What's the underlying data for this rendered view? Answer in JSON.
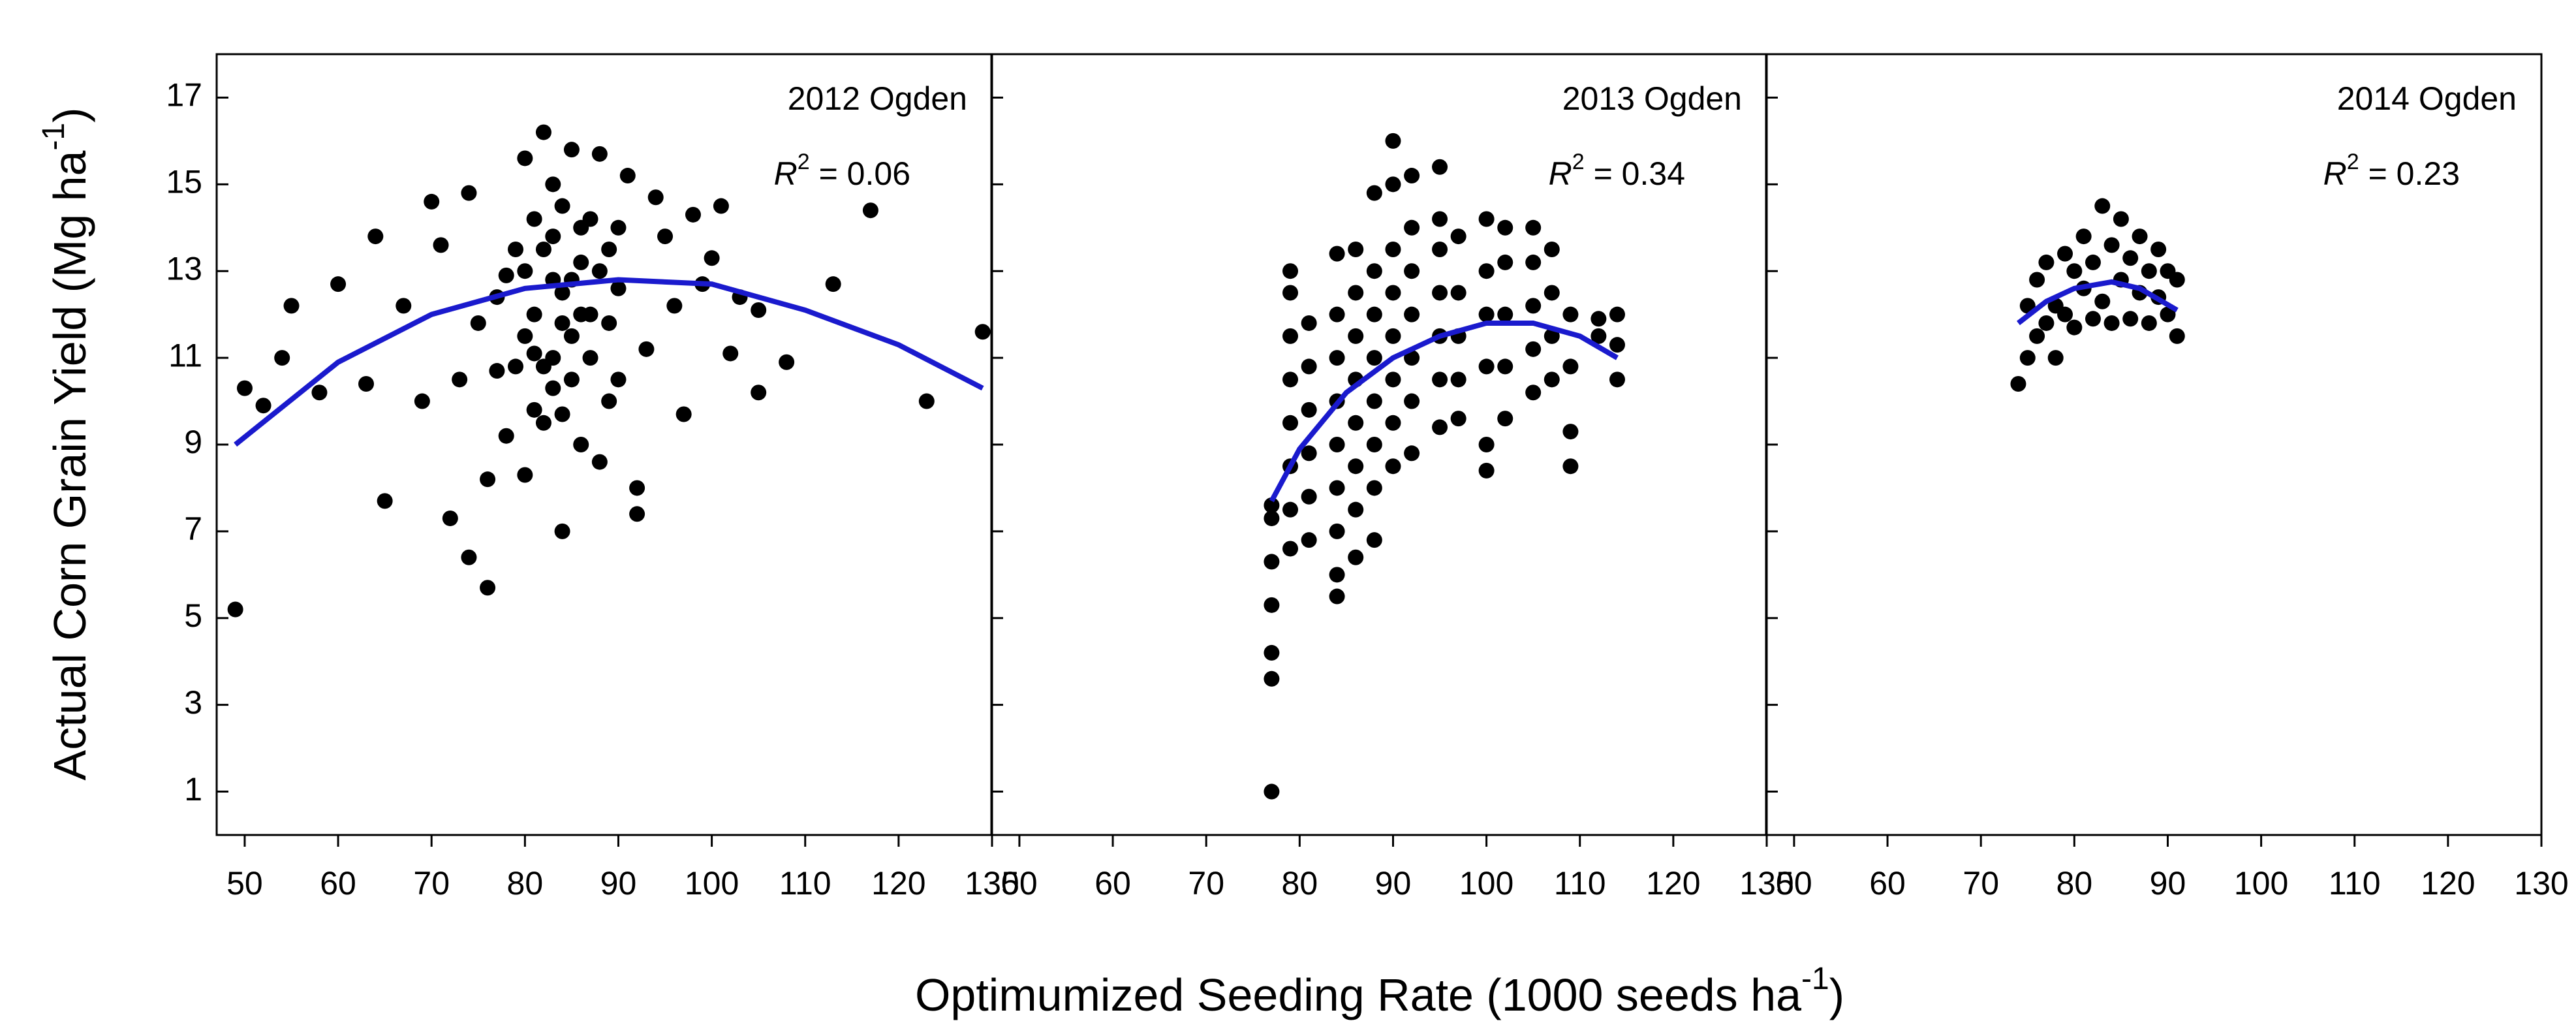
{
  "figure": {
    "xlabel": "Optimumized Seeding Rate (1000 seeds ha",
    "xlabel_sup": "-1",
    "xlabel_end": ")",
    "ylabel": "Actual Corn Grain Yield (Mg ha",
    "ylabel_sup": "-1",
    "ylabel_end": ")"
  },
  "chart_data": [
    {
      "type": "scatter",
      "title": "2012 Ogden",
      "annotation": {
        "symbol": "R",
        "superscript": "2",
        "text": " = 0.06"
      },
      "xlim": [
        47,
        130
      ],
      "ylim": [
        0,
        18
      ],
      "xticks": [
        50,
        60,
        70,
        80,
        90,
        100,
        110,
        120,
        130
      ],
      "yticks": [
        1,
        3,
        5,
        7,
        9,
        11,
        13,
        15,
        17
      ],
      "series": [
        {
          "color": "#000000",
          "x": [
            49,
            50,
            52,
            54,
            55,
            58,
            60,
            63,
            64,
            65,
            67,
            69,
            70,
            71,
            72,
            73,
            74,
            74,
            76,
            76,
            77,
            78,
            79,
            80,
            80,
            81,
            82,
            82,
            83,
            83,
            84,
            84,
            85,
            85,
            86,
            86,
            87,
            87,
            88,
            88,
            89,
            89,
            90,
            90,
            91,
            92,
            92,
            93,
            94,
            95,
            96,
            97,
            98,
            99,
            100,
            101,
            102,
            103,
            105,
            105,
            108,
            113,
            117,
            123,
            129,
            81,
            82,
            83,
            84,
            85,
            86,
            80,
            79,
            81,
            83,
            84,
            82,
            80,
            85,
            87,
            86,
            78,
            77,
            75,
            84,
            83,
            81,
            88,
            89,
            90
          ],
          "values": [
            5.2,
            10.3,
            9.9,
            11,
            12.2,
            10.2,
            12.7,
            10.4,
            13.8,
            7.7,
            12.2,
            10,
            14.6,
            13.6,
            7.3,
            10.5,
            14.8,
            6.4,
            5.7,
            8.2,
            12.4,
            9.2,
            13.5,
            8.3,
            15.6,
            11.1,
            16.2,
            9.5,
            12.8,
            10.3,
            14.5,
            7,
            15.8,
            11.5,
            13.2,
            9,
            12,
            14.2,
            8.6,
            15.7,
            11.8,
            13.5,
            10.5,
            12.6,
            15.2,
            8,
            7.4,
            11.2,
            14.7,
            13.8,
            12.2,
            9.7,
            14.3,
            12.7,
            13.3,
            14.5,
            11.1,
            12.4,
            10.2,
            12.1,
            10.9,
            12.7,
            14.4,
            10,
            11.6,
            12,
            13.5,
            11,
            12.5,
            10.5,
            14,
            11.5,
            10.8,
            14.2,
            15,
            11.8,
            10.8,
            13,
            12.8,
            11,
            12,
            12.9,
            10.7,
            11.8,
            9.7,
            13.8,
            9.8,
            13,
            10,
            14
          ]
        }
      ],
      "fit": {
        "color": "#1a1acd",
        "x": [
          49,
          60,
          70,
          80,
          90,
          100,
          110,
          120,
          129
        ],
        "values": [
          9.0,
          10.9,
          12.0,
          12.6,
          12.8,
          12.7,
          12.1,
          11.3,
          10.3
        ]
      }
    },
    {
      "type": "scatter",
      "title": "2013 Ogden",
      "annotation": {
        "symbol": "R",
        "superscript": "2",
        "text": " = 0.34"
      },
      "xlim": [
        47,
        130
      ],
      "ylim": [
        0,
        18
      ],
      "xticks": [
        50,
        60,
        70,
        80,
        90,
        100,
        110,
        120,
        130
      ],
      "series": [
        {
          "color": "#000000",
          "x": [
            77,
            77,
            77,
            77,
            77,
            77,
            77,
            79,
            79,
            79,
            79,
            79,
            79,
            79,
            79,
            81,
            81,
            81,
            81,
            81,
            81,
            84,
            84,
            84,
            84,
            84,
            84,
            84,
            84,
            84,
            86,
            86,
            86,
            86,
            86,
            86,
            86,
            86,
            88,
            88,
            88,
            88,
            88,
            88,
            88,
            88,
            90,
            90,
            90,
            90,
            90,
            90,
            90,
            90,
            92,
            92,
            92,
            92,
            92,
            92,
            92,
            95,
            95,
            95,
            95,
            95,
            95,
            95,
            97,
            97,
            97,
            97,
            97,
            100,
            100,
            100,
            100,
            100,
            100,
            102,
            102,
            102,
            102,
            102,
            105,
            105,
            105,
            105,
            105,
            107,
            107,
            107,
            107,
            109,
            109,
            109,
            109,
            112,
            112,
            114,
            114,
            114
          ],
          "values": [
            1,
            3.6,
            4.2,
            5.3,
            6.3,
            7.3,
            7.6,
            6.6,
            7.5,
            8.5,
            9.5,
            10.5,
            11.5,
            12.5,
            13,
            6.8,
            7.8,
            8.8,
            9.8,
            10.8,
            11.8,
            5.5,
            6,
            7,
            8,
            9,
            10,
            11,
            12,
            13.4,
            6.4,
            7.5,
            8.5,
            9.5,
            10.5,
            11.5,
            12.5,
            13.5,
            6.8,
            8,
            9,
            10,
            11,
            12,
            13,
            14.8,
            8.5,
            9.5,
            10.5,
            11.5,
            12.5,
            13.5,
            15,
            16,
            8.8,
            10,
            11,
            12,
            13,
            14,
            15.2,
            9.4,
            10.5,
            11.5,
            12.5,
            13.5,
            14.2,
            15.4,
            9.6,
            10.5,
            11.5,
            12.5,
            13.8,
            8.4,
            9,
            10.8,
            12,
            13,
            14.2,
            9.6,
            10.8,
            12,
            13.2,
            14,
            10.2,
            11.2,
            12.2,
            13.2,
            14,
            10.5,
            11.5,
            12.5,
            13.5,
            8.5,
            9.3,
            10.8,
            12,
            11.5,
            11.9,
            10.5,
            11.3,
            12
          ]
        }
      ],
      "fit": {
        "color": "#1a1acd",
        "x": [
          77,
          80,
          85,
          90,
          95,
          100,
          105,
          110,
          114
        ],
        "values": [
          7.7,
          8.9,
          10.2,
          11.0,
          11.5,
          11.8,
          11.8,
          11.5,
          11.0
        ]
      }
    },
    {
      "type": "scatter",
      "title": "2014 Ogden",
      "annotation": {
        "symbol": "R",
        "superscript": "2",
        "text": " = 0.23"
      },
      "xlim": [
        47,
        130
      ],
      "ylim": [
        0,
        18
      ],
      "xticks": [
        50,
        60,
        70,
        80,
        90,
        100,
        110,
        120,
        130
      ],
      "series": [
        {
          "color": "#000000",
          "x": [
            74,
            75,
            75,
            76,
            76,
            77,
            77,
            78,
            78,
            79,
            79,
            80,
            80,
            81,
            81,
            82,
            82,
            83,
            83,
            84,
            84,
            85,
            85,
            86,
            86,
            87,
            87,
            88,
            88,
            89,
            89,
            90,
            90,
            91,
            91
          ],
          "values": [
            10.4,
            11,
            12.2,
            11.5,
            12.8,
            11.8,
            13.2,
            12.2,
            11,
            13.4,
            12,
            11.7,
            13,
            12.6,
            13.8,
            11.9,
            13.2,
            14.5,
            12.3,
            11.8,
            13.6,
            12.8,
            14.2,
            11.9,
            13.3,
            12.5,
            13.8,
            11.8,
            13,
            12.4,
            13.5,
            12,
            13,
            11.5,
            12.8
          ]
        }
      ],
      "fit": {
        "color": "#1a1acd",
        "x": [
          74,
          77,
          80,
          84,
          87,
          91
        ],
        "values": [
          11.8,
          12.3,
          12.6,
          12.75,
          12.6,
          12.1
        ]
      }
    }
  ]
}
